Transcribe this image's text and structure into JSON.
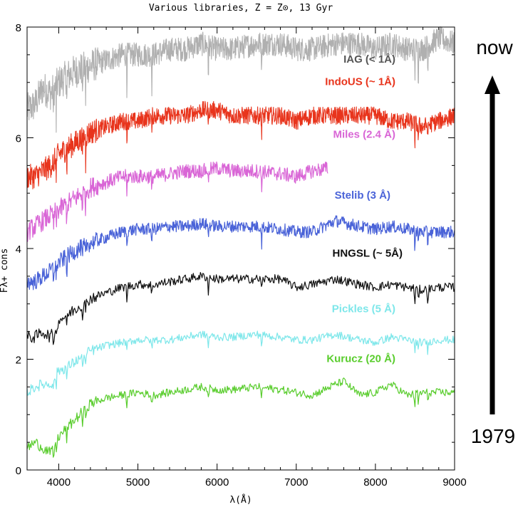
{
  "chart_data": {
    "type": "line",
    "title": "Various libraries, Z = Z⊙, 13 Gyr",
    "xlabel": "λ(Å)",
    "ylabel": "Fλ+ cons",
    "xlim": [
      3600,
      9000
    ],
    "ylim": [
      0,
      8
    ],
    "x_ticks": [
      4000,
      5000,
      6000,
      7000,
      8000,
      9000
    ],
    "y_ticks": [
      0,
      2,
      4,
      6,
      8
    ],
    "grid": false,
    "timeline": {
      "top_label": "now",
      "bottom_label": "1979"
    },
    "series": [
      {
        "name": "IAG (< 1Å)",
        "color": "#b0b0b0",
        "noise": 0.22,
        "x": [
          3600,
          3700,
          3800,
          3900,
          4000,
          4100,
          4200,
          4400,
          4600,
          4800,
          5000,
          5200,
          5400,
          5600,
          5800,
          6000,
          6200,
          6500,
          6800,
          7000,
          7200,
          7500,
          7800,
          8000,
          8200,
          8400,
          8600,
          8800,
          9000
        ],
        "y": [
          6.5,
          6.6,
          6.9,
          6.8,
          7.0,
          7.1,
          7.2,
          7.3,
          7.4,
          7.5,
          7.5,
          7.5,
          7.6,
          7.6,
          7.7,
          7.6,
          7.6,
          7.7,
          7.7,
          7.6,
          7.6,
          7.7,
          7.7,
          7.6,
          7.7,
          7.6,
          7.6,
          7.8,
          7.7
        ]
      },
      {
        "name": "IndoUS (~ 1Å)",
        "color": "#e8341c",
        "noise": 0.16,
        "x": [
          3600,
          3700,
          3800,
          3900,
          4000,
          4100,
          4200,
          4400,
          4600,
          4800,
          5000,
          5200,
          5400,
          5600,
          5800,
          6000,
          6200,
          6500,
          6800,
          7000,
          7200,
          7500,
          7800,
          8000,
          8200,
          8400,
          8600,
          8800,
          9000
        ],
        "y": [
          5.3,
          5.3,
          5.4,
          5.5,
          5.7,
          5.8,
          5.9,
          6.1,
          6.2,
          6.3,
          6.3,
          6.4,
          6.4,
          6.4,
          6.5,
          6.5,
          6.4,
          6.4,
          6.4,
          6.3,
          6.4,
          6.4,
          6.4,
          6.4,
          6.3,
          6.3,
          6.2,
          6.3,
          6.4
        ]
      },
      {
        "name": "Miles (2.4 Å)",
        "color": "#d966d6",
        "noise": 0.13,
        "x": [
          3600,
          3700,
          3800,
          3900,
          4000,
          4100,
          4200,
          4400,
          4600,
          4800,
          5000,
          5200,
          5400,
          5600,
          5800,
          6000,
          6200,
          6500,
          6800,
          7000,
          7200,
          7400
        ],
        "y": [
          4.3,
          4.4,
          4.5,
          4.6,
          4.7,
          4.8,
          4.9,
          5.1,
          5.2,
          5.3,
          5.3,
          5.3,
          5.35,
          5.4,
          5.4,
          5.45,
          5.4,
          5.4,
          5.35,
          5.3,
          5.4,
          5.45
        ]
      },
      {
        "name": "Stelib (3 Å)",
        "color": "#4a63d8",
        "noise": 0.11,
        "x": [
          3600,
          3700,
          3800,
          3900,
          4000,
          4100,
          4200,
          4400,
          4600,
          4800,
          5000,
          5200,
          5400,
          5600,
          5800,
          6000,
          6200,
          6500,
          6800,
          7000,
          7200,
          7500,
          7800,
          8000,
          8200,
          8400,
          8600,
          8800,
          9000
        ],
        "y": [
          3.4,
          3.4,
          3.5,
          3.6,
          3.75,
          3.85,
          3.95,
          4.1,
          4.2,
          4.3,
          4.35,
          4.35,
          4.4,
          4.4,
          4.45,
          4.4,
          4.4,
          4.4,
          4.35,
          4.3,
          4.3,
          4.5,
          4.4,
          4.35,
          4.4,
          4.35,
          4.3,
          4.3,
          4.3
        ]
      },
      {
        "name": "HNGSL (~ 5Å)",
        "color": "#111111",
        "noise": 0.08,
        "x": [
          3600,
          3700,
          3800,
          3900,
          4000,
          4100,
          4200,
          4400,
          4600,
          4800,
          5000,
          5200,
          5400,
          5600,
          5800,
          6000,
          6200,
          6500,
          6800,
          7000,
          7200,
          7500,
          7800,
          8000,
          8200,
          8400,
          8600,
          8800,
          9000
        ],
        "y": [
          2.4,
          2.4,
          2.5,
          2.4,
          2.7,
          2.8,
          2.9,
          3.1,
          3.2,
          3.3,
          3.35,
          3.35,
          3.4,
          3.45,
          3.5,
          3.45,
          3.45,
          3.45,
          3.45,
          3.3,
          3.35,
          3.45,
          3.35,
          3.3,
          3.35,
          3.3,
          3.25,
          3.3,
          3.3
        ]
      },
      {
        "name": "Pickles (5 Å)",
        "color": "#7ee7ea",
        "noise": 0.07,
        "x": [
          3600,
          3700,
          3800,
          3900,
          4000,
          4100,
          4200,
          4400,
          4600,
          4800,
          5000,
          5200,
          5400,
          5600,
          5800,
          6000,
          6200,
          6500,
          6800,
          7000,
          7200,
          7500,
          7800,
          8000,
          8200,
          8400,
          8600,
          8800,
          9000
        ],
        "y": [
          1.4,
          1.5,
          1.55,
          1.55,
          1.8,
          1.85,
          1.95,
          2.15,
          2.25,
          2.3,
          2.35,
          2.35,
          2.35,
          2.4,
          2.45,
          2.4,
          2.4,
          2.45,
          2.4,
          2.35,
          2.35,
          2.45,
          2.35,
          2.3,
          2.4,
          2.35,
          2.3,
          2.35,
          2.35
        ]
      },
      {
        "name": "Kurucz (20 Å)",
        "color": "#5acd2e",
        "noise": 0.07,
        "x": [
          3600,
          3700,
          3800,
          3900,
          4000,
          4100,
          4200,
          4400,
          4600,
          4800,
          5000,
          5200,
          5400,
          5600,
          5800,
          6000,
          6200,
          6500,
          6800,
          7000,
          7200,
          7500,
          7600,
          7800,
          8000,
          8200,
          8400,
          8600,
          8800,
          9000
        ],
        "y": [
          0.4,
          0.5,
          0.4,
          0.3,
          0.6,
          0.75,
          0.9,
          1.2,
          1.3,
          1.35,
          1.4,
          1.35,
          1.4,
          1.45,
          1.5,
          1.45,
          1.45,
          1.5,
          1.45,
          1.4,
          1.35,
          1.55,
          1.6,
          1.35,
          1.4,
          1.55,
          1.35,
          1.4,
          1.4,
          1.4
        ]
      }
    ]
  }
}
